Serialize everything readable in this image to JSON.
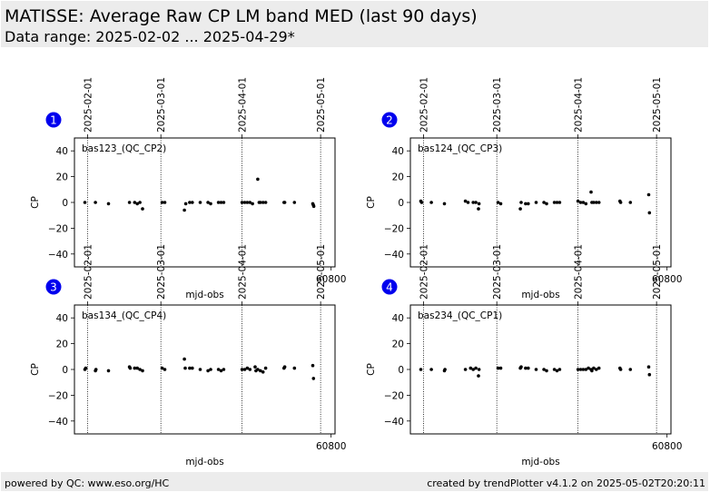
{
  "header": {
    "title": "MATISSE: Average Raw CP LM band MED (last 90 days)",
    "subtitle": "Data range: 2025-02-02 ... 2025-04-29*"
  },
  "footer": {
    "left": "powered by QC: www.eso.org/HC",
    "right": "created by trendPlotter v4.1.2 on 2025-05-02T20:20:11"
  },
  "colors": {
    "marker": "#000000",
    "badge": "#0000ee",
    "header_bg": "#ececec"
  },
  "chart_data": [
    {
      "type": "scatter",
      "badge": "1",
      "label": "bas123_(QC_CP2)",
      "xlabel": "mjd-obs",
      "ylabel": "CP",
      "xlim": [
        60702,
        60801.5
      ],
      "ylim": [
        -50,
        50
      ],
      "yticks": [
        -40,
        -20,
        0,
        20,
        40
      ],
      "xticks": [
        {
          "value": 60800,
          "label": "60800"
        }
      ],
      "date_ticks": [
        {
          "value": 60707,
          "label": "2025-02-01"
        },
        {
          "value": 60735,
          "label": "2025-03-01"
        },
        {
          "value": 60766,
          "label": "2025-04-01"
        },
        {
          "value": 60796,
          "label": "2025-05-01"
        }
      ],
      "points": [
        [
          60706,
          0
        ],
        [
          60710,
          0
        ],
        [
          60715,
          -1
        ],
        [
          60723,
          0
        ],
        [
          60725,
          0
        ],
        [
          60726,
          -1
        ],
        [
          60727,
          0
        ],
        [
          60728,
          -5
        ],
        [
          60735.5,
          0
        ],
        [
          60736.5,
          0
        ],
        [
          60744,
          -6
        ],
        [
          60744.5,
          -1
        ],
        [
          60746,
          0
        ],
        [
          60747,
          0
        ],
        [
          60750,
          0
        ],
        [
          60753,
          0
        ],
        [
          60754,
          -1
        ],
        [
          60757,
          0
        ],
        [
          60758,
          0
        ],
        [
          60759,
          0
        ],
        [
          60766,
          0
        ],
        [
          60767,
          0
        ],
        [
          60768,
          0
        ],
        [
          60769,
          0
        ],
        [
          60770,
          -1
        ],
        [
          60772,
          18
        ],
        [
          60772.5,
          0
        ],
        [
          60773,
          0
        ],
        [
          60774,
          0
        ],
        [
          60775,
          0
        ],
        [
          60782,
          0
        ],
        [
          60782.3,
          0
        ],
        [
          60786,
          0
        ],
        [
          60793,
          -1
        ],
        [
          60793.2,
          -2
        ],
        [
          60793.4,
          -3
        ]
      ]
    },
    {
      "type": "scatter",
      "badge": "2",
      "label": "bas124_(QC_CP3)",
      "xlabel": "mjd-obs",
      "ylabel": "CP",
      "xlim": [
        60702,
        60801.5
      ],
      "ylim": [
        -50,
        50
      ],
      "yticks": [
        -40,
        -20,
        0,
        20,
        40
      ],
      "xticks": [
        {
          "value": 60800,
          "label": "60800"
        }
      ],
      "date_ticks": [
        {
          "value": 60707,
          "label": "2025-02-01"
        },
        {
          "value": 60735,
          "label": "2025-03-01"
        },
        {
          "value": 60766,
          "label": "2025-04-01"
        },
        {
          "value": 60796,
          "label": "2025-05-01"
        }
      ],
      "points": [
        [
          60706,
          1
        ],
        [
          60706.3,
          0
        ],
        [
          60710,
          0
        ],
        [
          60715,
          -1
        ],
        [
          60723,
          1
        ],
        [
          60724,
          0
        ],
        [
          60726,
          0
        ],
        [
          60727,
          0
        ],
        [
          60728,
          -5
        ],
        [
          60728.2,
          -1
        ],
        [
          60735.5,
          0
        ],
        [
          60736.5,
          -1
        ],
        [
          60744,
          -5
        ],
        [
          60744.3,
          0
        ],
        [
          60746,
          -1
        ],
        [
          60747,
          -1
        ],
        [
          60750,
          0
        ],
        [
          60753,
          0
        ],
        [
          60754,
          -1
        ],
        [
          60757,
          0
        ],
        [
          60758,
          0
        ],
        [
          60759,
          0
        ],
        [
          60766,
          1
        ],
        [
          60767,
          0
        ],
        [
          60768,
          0
        ],
        [
          60769,
          -1
        ],
        [
          60771,
          8
        ],
        [
          60771.3,
          0
        ],
        [
          60772,
          0
        ],
        [
          60773,
          0
        ],
        [
          60774,
          0
        ],
        [
          60782,
          1
        ],
        [
          60782.3,
          0
        ],
        [
          60786,
          0
        ],
        [
          60793,
          6
        ],
        [
          60793.3,
          -8
        ]
      ]
    },
    {
      "type": "scatter",
      "badge": "3",
      "label": "bas134_(QC_CP4)",
      "xlabel": "mjd-obs",
      "ylabel": "CP",
      "xlim": [
        60702,
        60801.5
      ],
      "ylim": [
        -50,
        50
      ],
      "yticks": [
        -40,
        -20,
        0,
        20,
        40
      ],
      "xticks": [
        {
          "value": 60800,
          "label": "60800"
        }
      ],
      "date_ticks": [
        {
          "value": 60707,
          "label": "2025-02-01"
        },
        {
          "value": 60735,
          "label": "2025-03-01"
        },
        {
          "value": 60766,
          "label": "2025-04-01"
        },
        {
          "value": 60796,
          "label": "2025-05-01"
        }
      ],
      "points": [
        [
          60706,
          0
        ],
        [
          60706.3,
          1
        ],
        [
          60710,
          -1
        ],
        [
          60710.2,
          0
        ],
        [
          60715,
          -1
        ],
        [
          60723,
          2
        ],
        [
          60723.3,
          1
        ],
        [
          60725,
          1
        ],
        [
          60726,
          1
        ],
        [
          60727,
          0
        ],
        [
          60728,
          -1
        ],
        [
          60735.5,
          1
        ],
        [
          60736.5,
          0
        ],
        [
          60744,
          8
        ],
        [
          60744.3,
          1
        ],
        [
          60746,
          1
        ],
        [
          60747,
          1
        ],
        [
          60750,
          0
        ],
        [
          60753,
          -1
        ],
        [
          60754,
          0
        ],
        [
          60757,
          0
        ],
        [
          60758,
          -1
        ],
        [
          60759,
          0
        ],
        [
          60766,
          0
        ],
        [
          60767,
          0
        ],
        [
          60768,
          1
        ],
        [
          60769,
          0
        ],
        [
          60771,
          2
        ],
        [
          60771.3,
          -1
        ],
        [
          60772,
          0
        ],
        [
          60773,
          -1
        ],
        [
          60774,
          -2
        ],
        [
          60775,
          1
        ],
        [
          60782,
          1
        ],
        [
          60782.3,
          2
        ],
        [
          60786,
          1
        ],
        [
          60793,
          3
        ],
        [
          60793.3,
          -7
        ]
      ]
    },
    {
      "type": "scatter",
      "badge": "4",
      "label": "bas234_(QC_CP1)",
      "xlabel": "mjd-obs",
      "ylabel": "CP",
      "xlim": [
        60702,
        60801.5
      ],
      "ylim": [
        -50,
        50
      ],
      "yticks": [
        -40,
        -20,
        0,
        20,
        40
      ],
      "xticks": [
        {
          "value": 60800,
          "label": "60800"
        }
      ],
      "date_ticks": [
        {
          "value": 60707,
          "label": "2025-02-01"
        },
        {
          "value": 60735,
          "label": "2025-03-01"
        },
        {
          "value": 60766,
          "label": "2025-04-01"
        },
        {
          "value": 60796,
          "label": "2025-05-01"
        }
      ],
      "points": [
        [
          60706,
          0
        ],
        [
          60710,
          0
        ],
        [
          60715,
          -1
        ],
        [
          60715.2,
          0
        ],
        [
          60723,
          0
        ],
        [
          60725,
          1
        ],
        [
          60726,
          0
        ],
        [
          60727,
          1
        ],
        [
          60728,
          -5
        ],
        [
          60728.2,
          0
        ],
        [
          60735.5,
          1
        ],
        [
          60736.5,
          1
        ],
        [
          60744,
          1
        ],
        [
          60744.3,
          2
        ],
        [
          60746,
          1
        ],
        [
          60747,
          1
        ],
        [
          60750,
          0
        ],
        [
          60753,
          0
        ],
        [
          60754,
          -1
        ],
        [
          60757,
          0
        ],
        [
          60758,
          -1
        ],
        [
          60759,
          0
        ],
        [
          60766,
          0
        ],
        [
          60767,
          0
        ],
        [
          60768,
          0
        ],
        [
          60769,
          0
        ],
        [
          60770,
          1
        ],
        [
          60771,
          0
        ],
        [
          60771.3,
          -1
        ],
        [
          60772,
          1
        ],
        [
          60773,
          0
        ],
        [
          60774,
          1
        ],
        [
          60782,
          1
        ],
        [
          60782.3,
          0
        ],
        [
          60786,
          0
        ],
        [
          60793,
          2
        ],
        [
          60793.3,
          -4
        ]
      ]
    }
  ]
}
